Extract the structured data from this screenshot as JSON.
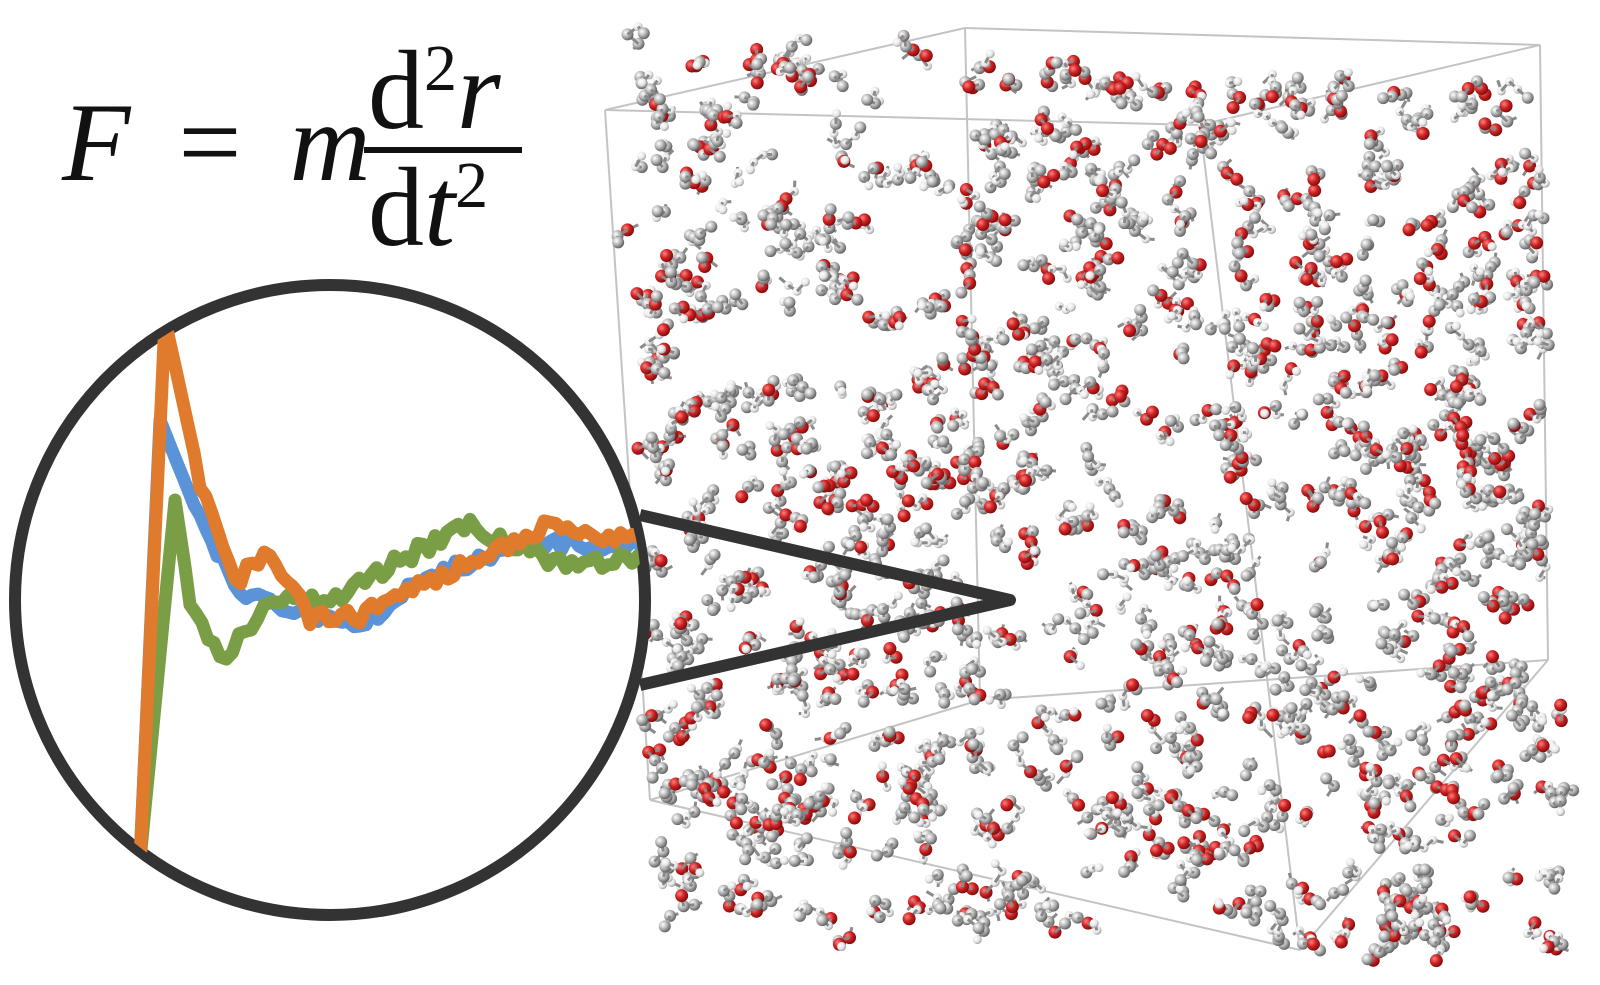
{
  "equation": {
    "lhs": "F",
    "equals": "=",
    "mass": "m",
    "numerator": {
      "d": "d",
      "power": "2",
      "var": "r"
    },
    "denominator": {
      "d": "d",
      "var": "t",
      "power": "2"
    }
  }
}
